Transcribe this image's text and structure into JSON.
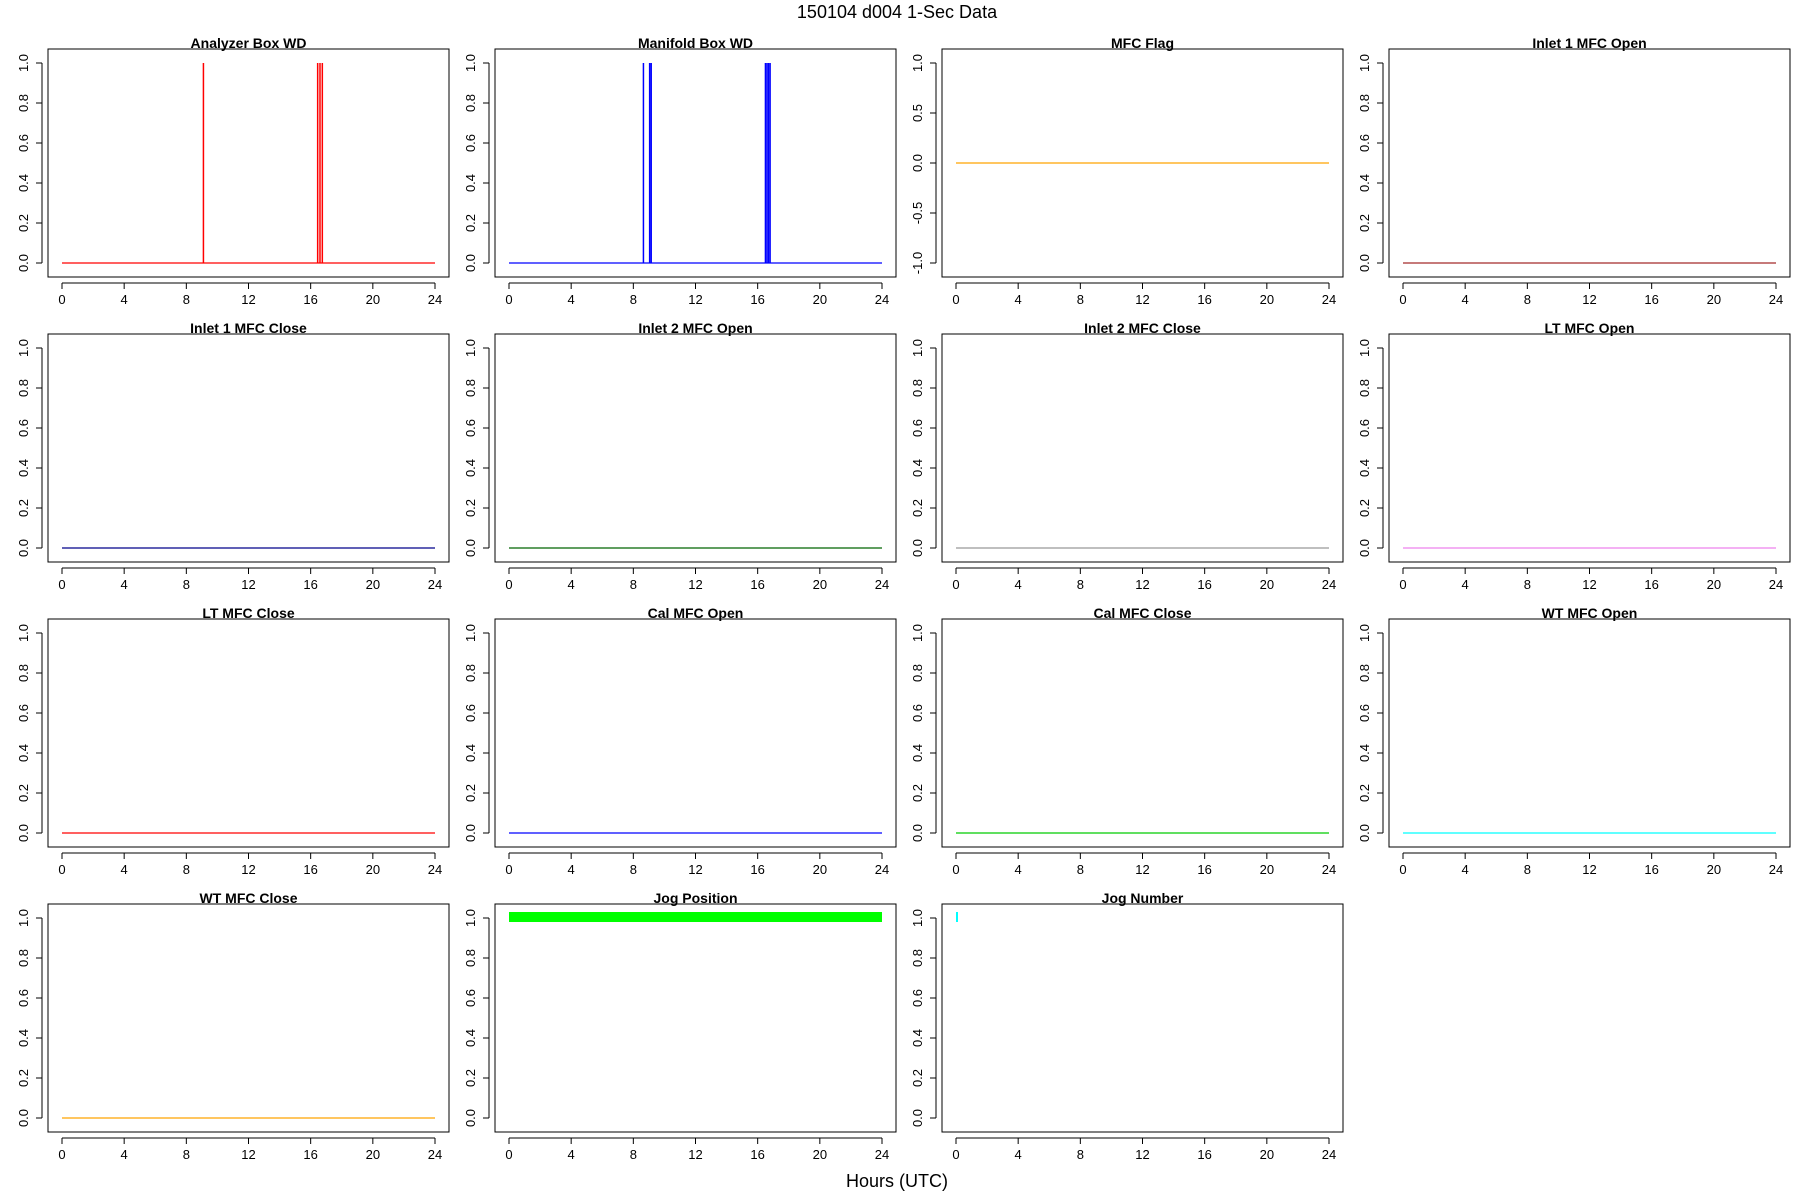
{
  "figure": {
    "title": "150104   d004   1-Sec Data",
    "xlabel": "Hours (UTC)"
  },
  "chart_data": [
    {
      "type": "line",
      "title": "Analyzer Box WD",
      "color": "#ff0000",
      "xlim": [
        0,
        24
      ],
      "ylim": [
        0,
        1
      ],
      "xticks": [
        "0",
        "4",
        "8",
        "12",
        "16",
        "20",
        "24"
      ],
      "yticks": [
        "0.0",
        "0.2",
        "0.4",
        "0.6",
        "0.8",
        "1.0"
      ],
      "baseline": 0,
      "spikes": [
        9.1,
        16.45,
        16.6,
        16.75
      ]
    },
    {
      "type": "line",
      "title": "Manifold Box WD",
      "color": "#0000ff",
      "xlim": [
        0,
        24
      ],
      "ylim": [
        0,
        1
      ],
      "xticks": [
        "0",
        "4",
        "8",
        "12",
        "16",
        "20",
        "24"
      ],
      "yticks": [
        "0.0",
        "0.2",
        "0.4",
        "0.6",
        "0.8",
        "1.0"
      ],
      "baseline": 0,
      "spikes": [
        8.65,
        9.05,
        9.15,
        16.5,
        16.6,
        16.7,
        16.8
      ]
    },
    {
      "type": "line",
      "title": "MFC Flag",
      "color": "#ffa500",
      "xlim": [
        0,
        24
      ],
      "ylim": [
        -1,
        1
      ],
      "xticks": [
        "0",
        "4",
        "8",
        "12",
        "16",
        "20",
        "24"
      ],
      "yticks": [
        "-1.0",
        "-0.5",
        "0.0",
        "0.5",
        "1.0"
      ],
      "baseline": 0,
      "spikes": []
    },
    {
      "type": "line",
      "title": "Inlet 1 MFC Open",
      "color": "#a52a2a",
      "xlim": [
        0,
        24
      ],
      "ylim": [
        0,
        1
      ],
      "xticks": [
        "0",
        "4",
        "8",
        "12",
        "16",
        "20",
        "24"
      ],
      "yticks": [
        "0.0",
        "0.2",
        "0.4",
        "0.6",
        "0.8",
        "1.0"
      ],
      "baseline": 0,
      "spikes": []
    },
    {
      "type": "line",
      "title": "Inlet 1 MFC Close",
      "color": "#00008b",
      "xlim": [
        0,
        24
      ],
      "ylim": [
        0,
        1
      ],
      "xticks": [
        "0",
        "4",
        "8",
        "12",
        "16",
        "20",
        "24"
      ],
      "yticks": [
        "0.0",
        "0.2",
        "0.4",
        "0.6",
        "0.8",
        "1.0"
      ],
      "baseline": 0,
      "spikes": []
    },
    {
      "type": "line",
      "title": "Inlet 2 MFC Open",
      "color": "#006400",
      "xlim": [
        0,
        24
      ],
      "ylim": [
        0,
        1
      ],
      "xticks": [
        "0",
        "4",
        "8",
        "12",
        "16",
        "20",
        "24"
      ],
      "yticks": [
        "0.0",
        "0.2",
        "0.4",
        "0.6",
        "0.8",
        "1.0"
      ],
      "baseline": 0,
      "spikes": []
    },
    {
      "type": "line",
      "title": "Inlet 2 MFC Close",
      "color": "#999999",
      "xlim": [
        0,
        24
      ],
      "ylim": [
        0,
        1
      ],
      "xticks": [
        "0",
        "4",
        "8",
        "12",
        "16",
        "20",
        "24"
      ],
      "yticks": [
        "0.0",
        "0.2",
        "0.4",
        "0.6",
        "0.8",
        "1.0"
      ],
      "baseline": 0,
      "spikes": []
    },
    {
      "type": "line",
      "title": "LT MFC Open",
      "color": "#ee82ee",
      "xlim": [
        0,
        24
      ],
      "ylim": [
        0,
        1
      ],
      "xticks": [
        "0",
        "4",
        "8",
        "12",
        "16",
        "20",
        "24"
      ],
      "yticks": [
        "0.0",
        "0.2",
        "0.4",
        "0.6",
        "0.8",
        "1.0"
      ],
      "baseline": 0,
      "spikes": []
    },
    {
      "type": "line",
      "title": "LT MFC Close",
      "color": "#ff0000",
      "xlim": [
        0,
        24
      ],
      "ylim": [
        0,
        1
      ],
      "xticks": [
        "0",
        "4",
        "8",
        "12",
        "16",
        "20",
        "24"
      ],
      "yticks": [
        "0.0",
        "0.2",
        "0.4",
        "0.6",
        "0.8",
        "1.0"
      ],
      "baseline": 0,
      "spikes": []
    },
    {
      "type": "line",
      "title": "Cal MFC Open",
      "color": "#0000ff",
      "xlim": [
        0,
        24
      ],
      "ylim": [
        0,
        1
      ],
      "xticks": [
        "0",
        "4",
        "8",
        "12",
        "16",
        "20",
        "24"
      ],
      "yticks": [
        "0.0",
        "0.2",
        "0.4",
        "0.6",
        "0.8",
        "1.0"
      ],
      "baseline": 0,
      "spikes": []
    },
    {
      "type": "line",
      "title": "Cal MFC Close",
      "color": "#00cc00",
      "xlim": [
        0,
        24
      ],
      "ylim": [
        0,
        1
      ],
      "xticks": [
        "0",
        "4",
        "8",
        "12",
        "16",
        "20",
        "24"
      ],
      "yticks": [
        "0.0",
        "0.2",
        "0.4",
        "0.6",
        "0.8",
        "1.0"
      ],
      "baseline": 0,
      "spikes": []
    },
    {
      "type": "line",
      "title": "WT MFC Open",
      "color": "#00ffff",
      "xlim": [
        0,
        24
      ],
      "ylim": [
        0,
        1
      ],
      "xticks": [
        "0",
        "4",
        "8",
        "12",
        "16",
        "20",
        "24"
      ],
      "yticks": [
        "0.0",
        "0.2",
        "0.4",
        "0.6",
        "0.8",
        "1.0"
      ],
      "baseline": 0,
      "spikes": []
    },
    {
      "type": "line",
      "title": "WT MFC Close",
      "color": "#ffa500",
      "xlim": [
        0,
        24
      ],
      "ylim": [
        0,
        1
      ],
      "xticks": [
        "0",
        "4",
        "8",
        "12",
        "16",
        "20",
        "24"
      ],
      "yticks": [
        "0.0",
        "0.2",
        "0.4",
        "0.6",
        "0.8",
        "1.0"
      ],
      "baseline": 0,
      "spikes": []
    },
    {
      "type": "line",
      "title": "Jog Position",
      "color": "#00ff00",
      "xlim": [
        0,
        24
      ],
      "ylim": [
        0,
        1
      ],
      "xticks": [
        "0",
        "4",
        "8",
        "12",
        "16",
        "20",
        "24"
      ],
      "yticks": [
        "0.0",
        "0.2",
        "0.4",
        "0.6",
        "0.8",
        "1.0"
      ],
      "band": {
        "x0": 0,
        "x1": 24,
        "y_low": 0.98,
        "y_high": 1.03
      }
    },
    {
      "type": "line",
      "title": "Jog Number",
      "color": "#00ffff",
      "xlim": [
        0,
        24
      ],
      "ylim": [
        0,
        1
      ],
      "xticks": [
        "0",
        "4",
        "8",
        "12",
        "16",
        "20",
        "24"
      ],
      "yticks": [
        "0.0",
        "0.2",
        "0.4",
        "0.6",
        "0.8",
        "1.0"
      ],
      "short_segment": {
        "x0": 0,
        "x1": 0.03,
        "y_low": 0.98,
        "y_high": 1.03
      }
    }
  ]
}
